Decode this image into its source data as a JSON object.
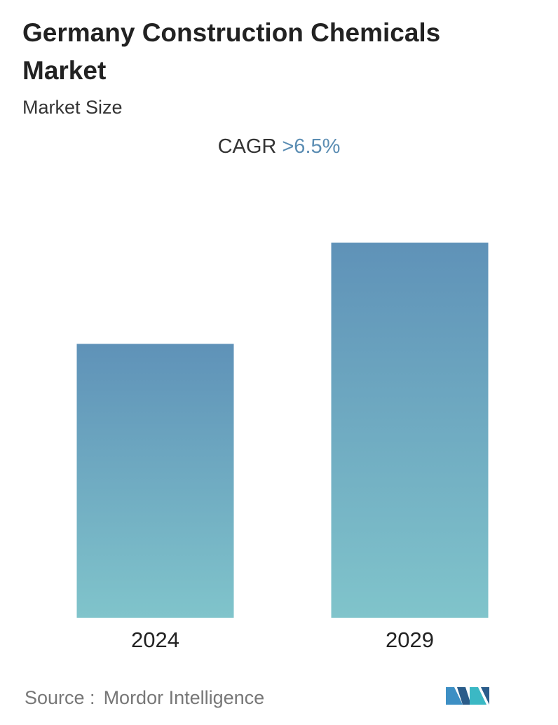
{
  "chart_data": {
    "type": "bar",
    "title": "Germany Construction Chemicals Market",
    "subtitle": "Market Size",
    "cagr_label": "CAGR",
    "cagr_value": ">6.5%",
    "categories": [
      "2024",
      "2029"
    ],
    "values": [
      73,
      100
    ],
    "ylim": [
      0,
      100
    ],
    "gradient": [
      "#5f92b8",
      "#80c4cb"
    ],
    "source_label": "Source :",
    "source": "Mordor Intelligence"
  }
}
